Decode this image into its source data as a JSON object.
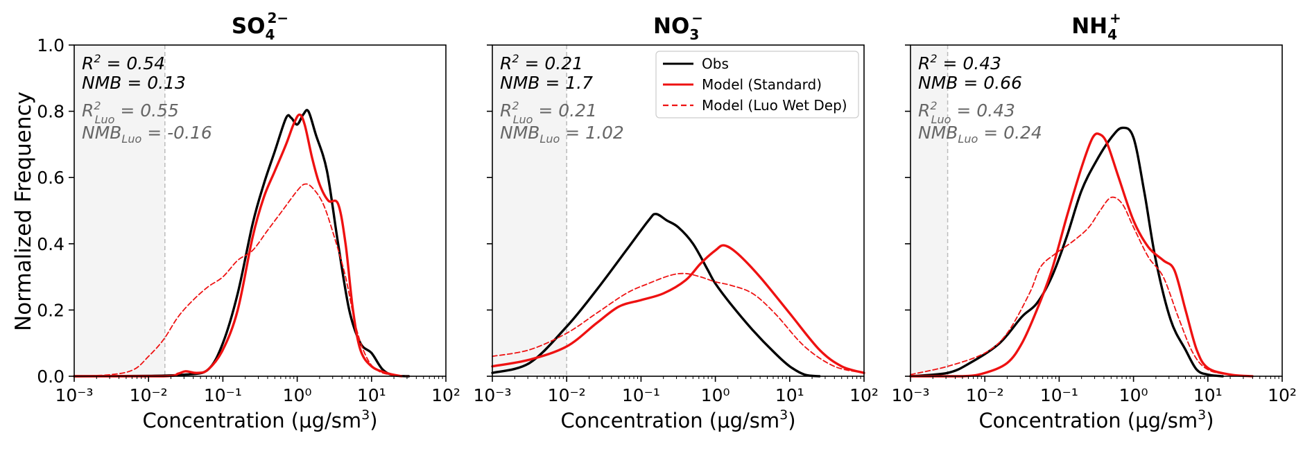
{
  "ylabel": "Normalized Frequency",
  "legend": {
    "placement": "top-right of middle panel",
    "entries": [
      {
        "label": "Obs",
        "color": "#000000",
        "style": "solid"
      },
      {
        "label": "Model (Standard)",
        "color": "#ee1111",
        "style": "solid"
      },
      {
        "label": "Model (Luo Wet Dep)",
        "color": "#ee1111",
        "style": "dashed"
      }
    ]
  },
  "colors": {
    "obs": "#000000",
    "standard": "#ee1111",
    "luo": "#ee1111",
    "stat_luo": "#666666",
    "shade": "#f4f4f4",
    "cutoff": "#bbbbbb"
  },
  "chart_data": [
    {
      "type": "line",
      "title": "SO",
      "title_sub": "4",
      "title_sup": "2−",
      "xlabel": "Concentration (μg/sm³)",
      "xscale": "log",
      "xlim_log10": [
        -3,
        2
      ],
      "ylim": [
        0,
        1.0
      ],
      "xticks": [
        "10⁻³",
        "10⁻²",
        "10⁻¹",
        "10⁰",
        "10¹",
        "10²"
      ],
      "yticks": [
        "0.0",
        "0.2",
        "0.4",
        "0.6",
        "0.8",
        "1.0"
      ],
      "shaded_below_log10": -1.78,
      "stats": {
        "r2": "R² = 0.54",
        "nmb": "NMB = 0.13",
        "r2_luo": "R²Luo = 0.55",
        "nmb_luo": "NMBLuo = -0.16"
      },
      "series": [
        {
          "name": "Obs",
          "points": [
            [
              -3,
              0
            ],
            [
              -2,
              0.001
            ],
            [
              -1.5,
              0.005
            ],
            [
              -1.2,
              0.02
            ],
            [
              -1.0,
              0.1
            ],
            [
              -0.8,
              0.25
            ],
            [
              -0.6,
              0.46
            ],
            [
              -0.45,
              0.58
            ],
            [
              -0.3,
              0.68
            ],
            [
              -0.15,
              0.78
            ],
            [
              -0.08,
              0.78
            ],
            [
              0,
              0.76
            ],
            [
              0.08,
              0.79
            ],
            [
              0.15,
              0.8
            ],
            [
              0.25,
              0.73
            ],
            [
              0.4,
              0.62
            ],
            [
              0.55,
              0.4
            ],
            [
              0.7,
              0.2
            ],
            [
              0.85,
              0.1
            ],
            [
              1.0,
              0.07
            ],
            [
              1.15,
              0.02
            ],
            [
              1.3,
              0.003
            ],
            [
              1.5,
              0
            ]
          ]
        },
        {
          "name": "Model (Standard)",
          "points": [
            [
              -3,
              0
            ],
            [
              -1.8,
              0
            ],
            [
              -1.6,
              0.008
            ],
            [
              -1.5,
              0.015
            ],
            [
              -1.35,
              0.01
            ],
            [
              -1.2,
              0.02
            ],
            [
              -1.0,
              0.08
            ],
            [
              -0.8,
              0.2
            ],
            [
              -0.6,
              0.42
            ],
            [
              -0.45,
              0.54
            ],
            [
              -0.3,
              0.62
            ],
            [
              -0.15,
              0.7
            ],
            [
              -0.05,
              0.76
            ],
            [
              0.03,
              0.79
            ],
            [
              0.1,
              0.76
            ],
            [
              0.2,
              0.66
            ],
            [
              0.3,
              0.58
            ],
            [
              0.42,
              0.53
            ],
            [
              0.55,
              0.52
            ],
            [
              0.65,
              0.4
            ],
            [
              0.75,
              0.2
            ],
            [
              0.85,
              0.08
            ],
            [
              1.0,
              0.03
            ],
            [
              1.2,
              0.01
            ],
            [
              1.4,
              0
            ]
          ]
        },
        {
          "name": "Model (Luo Wet Dep)",
          "dashed": true,
          "points": [
            [
              -3,
              0
            ],
            [
              -2.5,
              0.005
            ],
            [
              -2.2,
              0.02
            ],
            [
              -2.0,
              0.06
            ],
            [
              -1.8,
              0.11
            ],
            [
              -1.6,
              0.18
            ],
            [
              -1.4,
              0.23
            ],
            [
              -1.2,
              0.27
            ],
            [
              -1.0,
              0.3
            ],
            [
              -0.8,
              0.35
            ],
            [
              -0.6,
              0.38
            ],
            [
              -0.4,
              0.44
            ],
            [
              -0.2,
              0.5
            ],
            [
              0,
              0.56
            ],
            [
              0.1,
              0.58
            ],
            [
              0.2,
              0.57
            ],
            [
              0.35,
              0.52
            ],
            [
              0.5,
              0.42
            ],
            [
              0.65,
              0.3
            ],
            [
              0.8,
              0.14
            ],
            [
              0.95,
              0.05
            ],
            [
              1.1,
              0.015
            ],
            [
              1.3,
              0.003
            ],
            [
              1.5,
              0
            ]
          ]
        }
      ]
    },
    {
      "type": "line",
      "title": "NO",
      "title_sub": "3",
      "title_sup": "−",
      "xlabel": "Concentration (μg/sm³)",
      "xscale": "log",
      "xlim_log10": [
        -3,
        2
      ],
      "ylim": [
        0,
        1.0
      ],
      "xticks": [
        "10⁻³",
        "10⁻²",
        "10⁻¹",
        "10⁰",
        "10¹",
        "10²"
      ],
      "yticks": [
        "0.0",
        "0.2",
        "0.4",
        "0.6",
        "0.8",
        "1.0"
      ],
      "shaded_below_log10": -2.0,
      "stats": {
        "r2": "R² = 0.21",
        "nmb": "NMB = 1.7",
        "r2_luo": "R²Luo = 0.21",
        "nmb_luo": "NMBLuo = 1.02"
      },
      "series": [
        {
          "name": "Obs",
          "points": [
            [
              -3,
              0.01
            ],
            [
              -2.5,
              0.04
            ],
            [
              -2.0,
              0.15
            ],
            [
              -1.6,
              0.26
            ],
            [
              -1.2,
              0.38
            ],
            [
              -0.9,
              0.47
            ],
            [
              -0.8,
              0.49
            ],
            [
              -0.65,
              0.47
            ],
            [
              -0.5,
              0.45
            ],
            [
              -0.3,
              0.4
            ],
            [
              -0.1,
              0.32
            ],
            [
              0,
              0.28
            ],
            [
              0.2,
              0.22
            ],
            [
              0.5,
              0.14
            ],
            [
              0.8,
              0.07
            ],
            [
              1.0,
              0.03
            ],
            [
              1.2,
              0.005
            ],
            [
              1.4,
              0
            ]
          ]
        },
        {
          "name": "Model (Standard)",
          "points": [
            [
              -3,
              0.03
            ],
            [
              -2.5,
              0.05
            ],
            [
              -2.0,
              0.09
            ],
            [
              -1.6,
              0.16
            ],
            [
              -1.3,
              0.21
            ],
            [
              -1.0,
              0.23
            ],
            [
              -0.7,
              0.25
            ],
            [
              -0.4,
              0.29
            ],
            [
              -0.2,
              0.34
            ],
            [
              0,
              0.38
            ],
            [
              0.12,
              0.395
            ],
            [
              0.3,
              0.37
            ],
            [
              0.6,
              0.3
            ],
            [
              1.0,
              0.19
            ],
            [
              1.4,
              0.08
            ],
            [
              1.7,
              0.03
            ],
            [
              2.0,
              0.01
            ]
          ]
        },
        {
          "name": "Model (Luo Wet Dep)",
          "dashed": true,
          "points": [
            [
              -3,
              0.06
            ],
            [
              -2.5,
              0.08
            ],
            [
              -2.0,
              0.13
            ],
            [
              -1.6,
              0.19
            ],
            [
              -1.2,
              0.25
            ],
            [
              -0.9,
              0.28
            ],
            [
              -0.6,
              0.305
            ],
            [
              -0.4,
              0.31
            ],
            [
              -0.2,
              0.3
            ],
            [
              0,
              0.285
            ],
            [
              0.2,
              0.275
            ],
            [
              0.5,
              0.25
            ],
            [
              0.8,
              0.19
            ],
            [
              1.2,
              0.09
            ],
            [
              1.6,
              0.03
            ],
            [
              2.0,
              0.01
            ]
          ]
        }
      ]
    },
    {
      "type": "line",
      "title": "NH",
      "title_sub": "4",
      "title_sup": "+",
      "xlabel": "Concentration (μg/sm³)",
      "xscale": "log",
      "xlim_log10": [
        -3,
        2
      ],
      "ylim": [
        0,
        1.0
      ],
      "xticks": [
        "10⁻³",
        "10⁻²",
        "10⁻¹",
        "10⁰",
        "10¹",
        "10²"
      ],
      "yticks": [
        "0.0",
        "0.2",
        "0.4",
        "0.6",
        "0.8",
        "1.0"
      ],
      "shaded_below_log10": -2.5,
      "stats": {
        "r2": "R² = 0.43",
        "nmb": "NMB = 0.66",
        "r2_luo": "R²Luo = 0.43",
        "nmb_luo": "NMBLuo = 0.24"
      },
      "series": [
        {
          "name": "Obs",
          "points": [
            [
              -3,
              0
            ],
            [
              -2.5,
              0.01
            ],
            [
              -2.2,
              0.04
            ],
            [
              -1.8,
              0.1
            ],
            [
              -1.5,
              0.18
            ],
            [
              -1.3,
              0.22
            ],
            [
              -1.1,
              0.3
            ],
            [
              -0.9,
              0.42
            ],
            [
              -0.7,
              0.56
            ],
            [
              -0.5,
              0.65
            ],
            [
              -0.3,
              0.72
            ],
            [
              -0.15,
              0.75
            ],
            [
              0,
              0.72
            ],
            [
              0.15,
              0.55
            ],
            [
              0.3,
              0.35
            ],
            [
              0.5,
              0.17
            ],
            [
              0.7,
              0.08
            ],
            [
              0.85,
              0.02
            ],
            [
              1.0,
              0.005
            ],
            [
              1.2,
              0
            ]
          ]
        },
        {
          "name": "Model (Standard)",
          "points": [
            [
              -3,
              0
            ],
            [
              -2.3,
              0
            ],
            [
              -2.0,
              0.01
            ],
            [
              -1.7,
              0.04
            ],
            [
              -1.5,
              0.1
            ],
            [
              -1.3,
              0.2
            ],
            [
              -1.1,
              0.32
            ],
            [
              -0.9,
              0.48
            ],
            [
              -0.7,
              0.63
            ],
            [
              -0.55,
              0.72
            ],
            [
              -0.45,
              0.73
            ],
            [
              -0.35,
              0.7
            ],
            [
              -0.2,
              0.6
            ],
            [
              0,
              0.47
            ],
            [
              0.2,
              0.39
            ],
            [
              0.4,
              0.35
            ],
            [
              0.55,
              0.32
            ],
            [
              0.7,
              0.2
            ],
            [
              0.85,
              0.08
            ],
            [
              1.0,
              0.025
            ],
            [
              1.3,
              0.005
            ],
            [
              1.6,
              0
            ]
          ]
        },
        {
          "name": "Model (Luo Wet Dep)",
          "dashed": true,
          "points": [
            [
              -3,
              0.005
            ],
            [
              -2.5,
              0.03
            ],
            [
              -2.0,
              0.07
            ],
            [
              -1.7,
              0.13
            ],
            [
              -1.4,
              0.25
            ],
            [
              -1.25,
              0.33
            ],
            [
              -1.05,
              0.37
            ],
            [
              -0.8,
              0.41
            ],
            [
              -0.6,
              0.45
            ],
            [
              -0.45,
              0.5
            ],
            [
              -0.3,
              0.54
            ],
            [
              -0.15,
              0.52
            ],
            [
              0,
              0.45
            ],
            [
              0.2,
              0.36
            ],
            [
              0.4,
              0.3
            ],
            [
              0.6,
              0.18
            ],
            [
              0.8,
              0.07
            ],
            [
              1.0,
              0.02
            ],
            [
              1.3,
              0.005
            ],
            [
              1.6,
              0
            ]
          ]
        }
      ]
    }
  ]
}
